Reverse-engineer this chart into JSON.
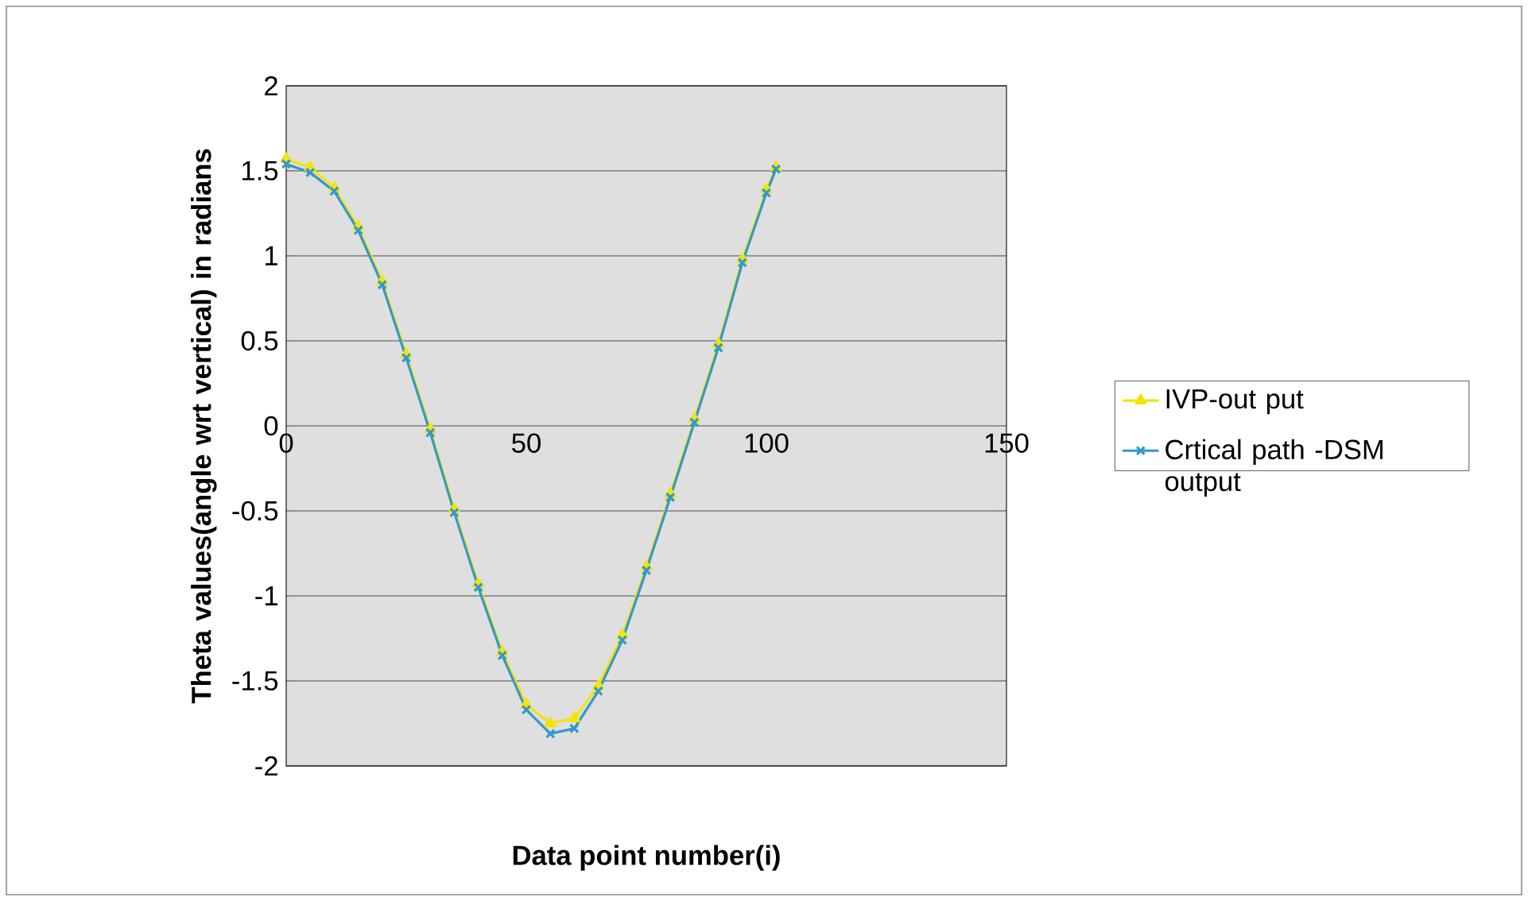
{
  "chart_data": {
    "type": "line",
    "xlabel": "Data point number(i)",
    "ylabel": "Theta values(angle wrt vertical) in radians",
    "x": [
      0,
      5,
      10,
      15,
      20,
      25,
      30,
      35,
      40,
      45,
      50,
      55,
      60,
      65,
      70,
      75,
      80,
      85,
      90,
      95,
      100,
      102
    ],
    "series": [
      {
        "name": "IVP-out put",
        "color": "#f2e40c",
        "marker": "triangle",
        "values": [
          1.57,
          1.52,
          1.4,
          1.17,
          0.85,
          0.42,
          -0.02,
          -0.49,
          -0.93,
          -1.33,
          -1.64,
          -1.75,
          -1.72,
          -1.53,
          -1.23,
          -0.83,
          -0.4,
          0.04,
          0.48,
          0.98,
          1.39,
          1.52
        ]
      },
      {
        "name": "Crtical path -DSM output",
        "color": "#3399cc",
        "marker": "cross",
        "values": [
          1.54,
          1.49,
          1.38,
          1.15,
          0.83,
          0.4,
          -0.04,
          -0.51,
          -0.95,
          -1.35,
          -1.67,
          -1.81,
          -1.78,
          -1.56,
          -1.26,
          -0.85,
          -0.42,
          0.02,
          0.46,
          0.96,
          1.37,
          1.51
        ]
      }
    ],
    "xlim": [
      0,
      150
    ],
    "xticks": [
      0,
      50,
      100,
      150
    ],
    "ylim": [
      -2,
      2
    ],
    "yticks": [
      -2,
      -1.5,
      -1,
      -0.5,
      0,
      0.5,
      1,
      1.5,
      2
    ],
    "grid": "y",
    "legend": "right",
    "line_style": "solid"
  }
}
